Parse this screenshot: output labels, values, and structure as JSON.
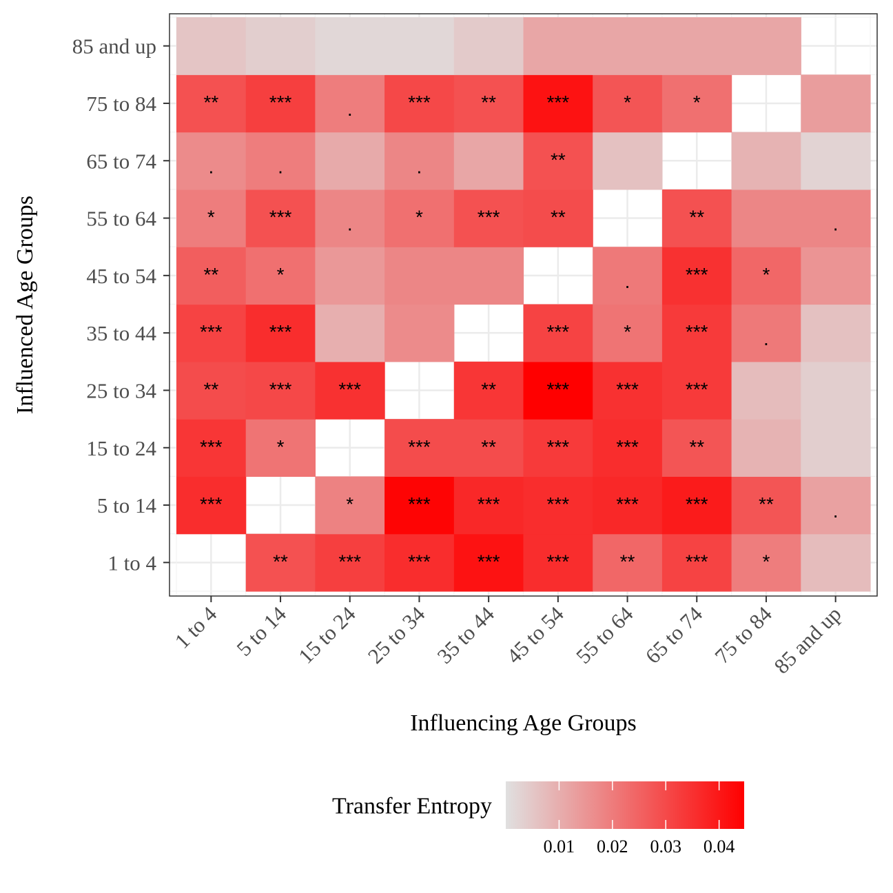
{
  "chart_data": {
    "type": "heatmap",
    "title": "",
    "xlabel": "Influencing Age Groups",
    "ylabel": "Influenced Age Groups",
    "x_categories": [
      "1 to 4",
      "5 to 14",
      "15 to 24",
      "25 to 34",
      "35 to 44",
      "45 to 54",
      "55 to 64",
      "65 to 74",
      "75 to 84",
      "85 and up"
    ],
    "y_categories": [
      "1 to 4",
      "5 to 14",
      "15 to 24",
      "25 to 34",
      "35 to 44",
      "45 to 54",
      "55 to 64",
      "65 to 74",
      "75 to 84",
      "85 and up"
    ],
    "values": [
      [
        null,
        0.032,
        0.036,
        0.04,
        0.046,
        0.04,
        0.027,
        0.035,
        0.022,
        0.008
      ],
      [
        0.04,
        null,
        0.021,
        0.049,
        0.041,
        0.04,
        0.041,
        0.044,
        0.031,
        0.014
      ],
      [
        0.038,
        0.024,
        null,
        0.033,
        0.033,
        0.037,
        0.04,
        0.031,
        0.01,
        0.004
      ],
      [
        0.033,
        0.034,
        0.039,
        null,
        0.038,
        0.05,
        0.039,
        0.037,
        0.008,
        0.004
      ],
      [
        0.035,
        0.04,
        0.011,
        0.019,
        null,
        0.035,
        0.024,
        0.037,
        0.023,
        0.007
      ],
      [
        0.029,
        0.025,
        0.016,
        0.02,
        0.02,
        null,
        0.023,
        0.039,
        0.027,
        0.017
      ],
      [
        0.022,
        0.032,
        0.02,
        0.025,
        0.032,
        0.033,
        null,
        0.032,
        0.02,
        0.02
      ],
      [
        0.019,
        0.022,
        0.012,
        0.02,
        0.013,
        0.032,
        0.007,
        null,
        0.01,
        0.003
      ],
      [
        0.032,
        0.036,
        0.022,
        0.034,
        0.032,
        0.046,
        0.031,
        0.025,
        null,
        0.015
      ],
      [
        0.006,
        0.004,
        0.002,
        0.002,
        0.005,
        0.013,
        0.013,
        0.013,
        0.013,
        null
      ]
    ],
    "significance": [
      [
        "",
        "**",
        "***",
        "***",
        "***",
        "***",
        "**",
        "***",
        "*",
        ""
      ],
      [
        "***",
        "",
        "*",
        "***",
        "***",
        "***",
        "***",
        "***",
        "**",
        "."
      ],
      [
        "***",
        "*",
        "",
        "***",
        "**",
        "***",
        "***",
        "**",
        "",
        ""
      ],
      [
        "**",
        "***",
        "***",
        "",
        "**",
        "***",
        "***",
        "***",
        "",
        ""
      ],
      [
        "***",
        "***",
        "",
        "",
        "",
        "***",
        "*",
        "***",
        ".",
        ""
      ],
      [
        "**",
        "*",
        "",
        "",
        "",
        "",
        ".",
        "***",
        "*",
        ""
      ],
      [
        "*",
        "***",
        ".",
        "*",
        "***",
        "**",
        "",
        "**",
        "",
        "."
      ],
      [
        ".",
        ".",
        "",
        ".",
        "",
        "**",
        "",
        "",
        "",
        ""
      ],
      [
        "**",
        "***",
        ".",
        "***",
        "**",
        "***",
        "*",
        "*",
        "",
        ""
      ],
      [
        "",
        "",
        "",
        "",
        "",
        "",
        "",
        "",
        "",
        ""
      ]
    ],
    "color_scale": {
      "low": "#e0e0e0",
      "high": "#ff0000",
      "min": 0.0,
      "max": 0.05
    },
    "legend": {
      "title": "Transfer Entropy",
      "position": "bottom",
      "ticks": [
        "0.01",
        "0.02",
        "0.03",
        "0.04"
      ],
      "tick_values": [
        0.01,
        0.02,
        0.03,
        0.04
      ]
    },
    "grid": true
  }
}
